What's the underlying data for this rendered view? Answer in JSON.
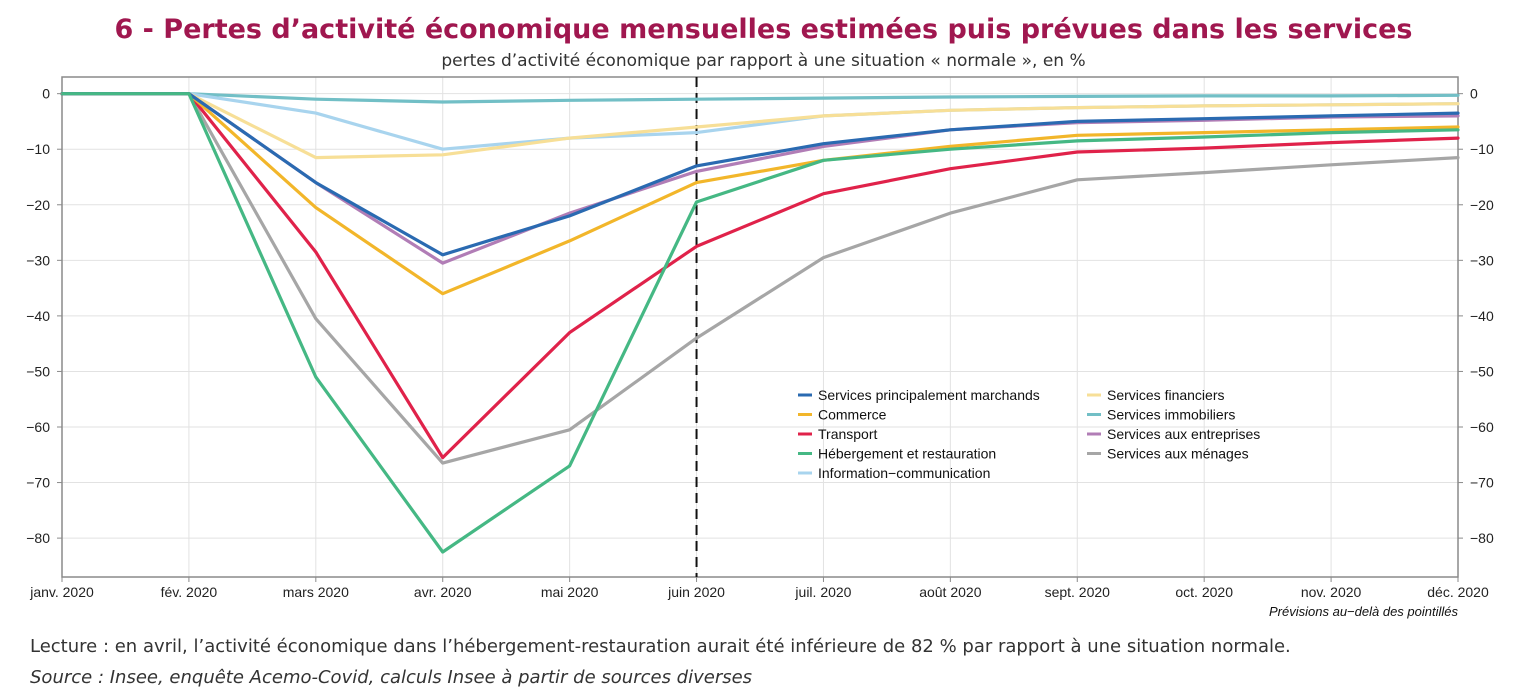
{
  "title": "6 - Pertes d’activité économique mensuelles estimées puis prévues dans les services",
  "subtitle": "pertes d’activité économique par rapport à une situation « normale », en %",
  "note": "Lecture : en avril, l’activité économique dans l’hébergement-restauration aurait été inférieure de 82 % par rapport à une situation normale.",
  "source": "Source : Insee, enquête Acemo-Covid, calculs Insee à partir de sources diverses",
  "chart_data": {
    "type": "line",
    "categories": [
      "janv. 2020",
      "fév. 2020",
      "mars 2020",
      "avr. 2020",
      "mai 2020",
      "juin 2020",
      "juil. 2020",
      "août 2020",
      "sept. 2020",
      "oct. 2020",
      "nov. 2020",
      "déc. 2020"
    ],
    "ylim": [
      -87,
      3
    ],
    "yticks": [
      0,
      -10,
      -20,
      -30,
      -40,
      -50,
      -60,
      -70,
      -80
    ],
    "ytick_labels": [
      "0",
      "−10",
      "−20",
      "−30",
      "−40",
      "−50",
      "−60",
      "−70",
      "−80"
    ],
    "y_axis_both_sides": true,
    "grid": true,
    "forecast_start": "juin 2020",
    "annotation": "Prévisions au−delà des pointillés",
    "legend_position": "bottom-right, inside plot",
    "series": [
      {
        "name": "Services principalement marchands",
        "color": "#2a6ab1",
        "values": [
          0,
          0,
          -16,
          -29,
          -22,
          -13,
          -9,
          -6.5,
          -5,
          -4.5,
          -4,
          -3.5
        ]
      },
      {
        "name": "Commerce",
        "color": "#f2b62a",
        "values": [
          0,
          0,
          -20.5,
          -36,
          -26.5,
          -16,
          -12,
          -9.5,
          -7.5,
          -7,
          -6.5,
          -6
        ]
      },
      {
        "name": "Transport",
        "color": "#e0224a",
        "values": [
          0,
          0,
          -28.5,
          -65.5,
          -43,
          -27.5,
          -18,
          -13.5,
          -10.5,
          -9.8,
          -8.8,
          -8
        ]
      },
      {
        "name": "Hébergement et restauration",
        "color": "#45b884",
        "values": [
          0,
          0,
          -51,
          -82.5,
          -67,
          -19.5,
          -12,
          -10,
          -8.5,
          -7.8,
          -7,
          -6.5
        ]
      },
      {
        "name": "Information−communication",
        "color": "#a8d4ee",
        "values": [
          0,
          0,
          -3.5,
          -10,
          -8,
          -7,
          -4,
          -3,
          -2.5,
          -2.2,
          -2,
          -1.8
        ]
      },
      {
        "name": "Services financiers",
        "color": "#f7df97",
        "values": [
          0,
          0,
          -11.5,
          -11,
          -8,
          -6,
          -4,
          -3,
          -2.5,
          -2.2,
          -2,
          -1.8
        ]
      },
      {
        "name": "Services immobiliers",
        "color": "#72bfc6",
        "values": [
          0,
          0,
          -1,
          -1.5,
          -1.2,
          -1,
          -0.8,
          -0.6,
          -0.5,
          -0.4,
          -0.4,
          -0.3
        ]
      },
      {
        "name": "Services aux entreprises",
        "color": "#b17db6",
        "values": [
          0,
          0,
          -16,
          -30.5,
          -21.5,
          -14,
          -9.5,
          -6.5,
          -5.2,
          -4.8,
          -4.2,
          -4
        ]
      },
      {
        "name": "Services aux ménages",
        "color": "#a6a6a6",
        "values": [
          0,
          0,
          -40.5,
          -66.5,
          -60.5,
          -44,
          -29.5,
          -21.5,
          -15.5,
          -14.2,
          -12.8,
          -11.5
        ]
      }
    ]
  }
}
